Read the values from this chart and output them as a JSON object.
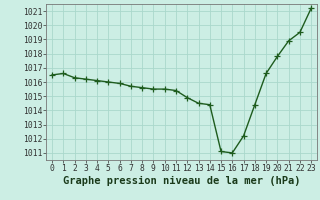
{
  "x": [
    0,
    1,
    2,
    3,
    4,
    5,
    6,
    7,
    8,
    9,
    10,
    11,
    12,
    13,
    14,
    15,
    16,
    17,
    18,
    19,
    20,
    21,
    22,
    23
  ],
  "y": [
    1016.5,
    1016.6,
    1016.3,
    1016.2,
    1016.1,
    1016.0,
    1015.9,
    1015.7,
    1015.6,
    1015.5,
    1015.5,
    1015.4,
    1014.9,
    1014.5,
    1014.4,
    1011.1,
    1011.0,
    1012.2,
    1014.4,
    1016.6,
    1017.8,
    1018.9,
    1019.5,
    1021.2
  ],
  "xlim": [
    -0.5,
    23.5
  ],
  "ylim": [
    1010.5,
    1021.5
  ],
  "yticks": [
    1011,
    1012,
    1013,
    1014,
    1015,
    1016,
    1017,
    1018,
    1019,
    1020,
    1021
  ],
  "xticks": [
    0,
    1,
    2,
    3,
    4,
    5,
    6,
    7,
    8,
    9,
    10,
    11,
    12,
    13,
    14,
    15,
    16,
    17,
    18,
    19,
    20,
    21,
    22,
    23
  ],
  "xlabel": "Graphe pression niveau de la mer (hPa)",
  "line_color": "#1e5c1e",
  "marker": "+",
  "marker_color": "#1e5c1e",
  "bg_color": "#cceee4",
  "grid_color": "#aad8cc",
  "tick_label_fontsize": 5.8,
  "xlabel_fontsize": 7.5,
  "line_width": 1.0,
  "marker_size": 4.5,
  "marker_edge_width": 0.9
}
